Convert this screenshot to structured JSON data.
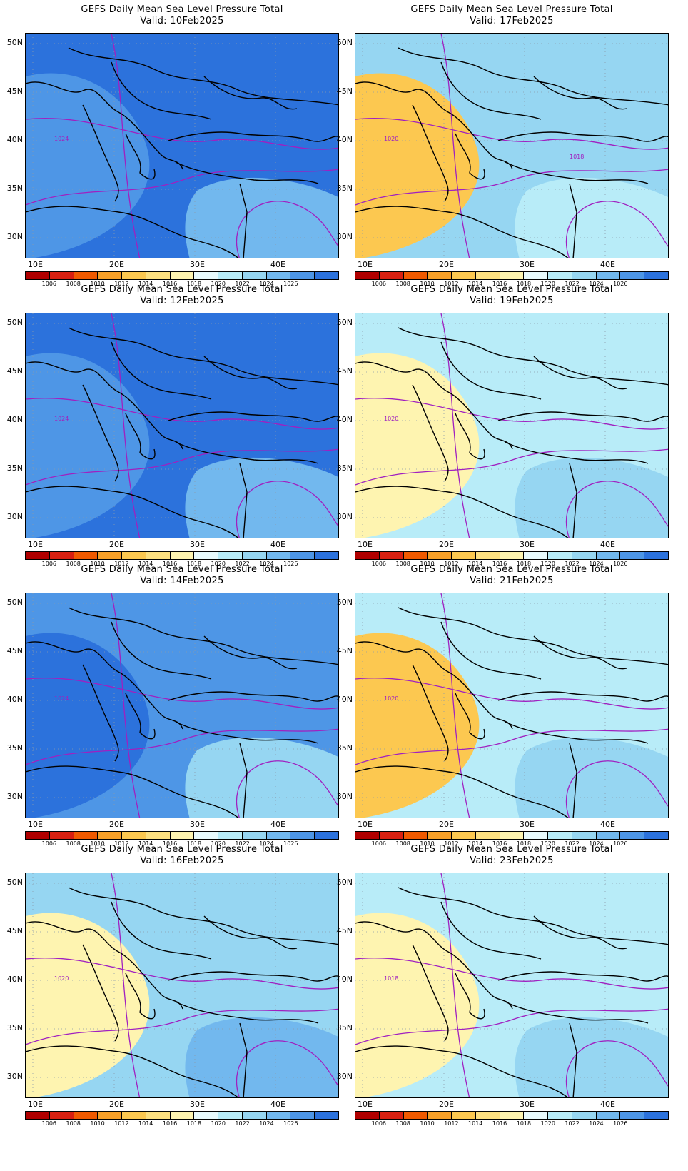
{
  "title_prefix": "GEFS Daily Mean Sea Level Pressure Total",
  "valid_prefix": "Valid:",
  "lat_labels": [
    "50N",
    "45N",
    "40N",
    "35N",
    "30N"
  ],
  "lon_labels": [
    "10E",
    "20E",
    "30E",
    "40E"
  ],
  "colorbar": {
    "colors": [
      "#b00000",
      "#d82010",
      "#f05a00",
      "#f8a028",
      "#fcc850",
      "#fde080",
      "#fef4b0",
      "#e8fafc",
      "#b8ecf8",
      "#96d6f2",
      "#72b8ee",
      "#4e96e6",
      "#2c72dc"
    ],
    "tick_labels": [
      "1006",
      "1008",
      "1010",
      "1012",
      "1014",
      "1016",
      "1018",
      "1020",
      "1022",
      "1024",
      "1026"
    ]
  },
  "contour_color": "#a020c0",
  "panels": [
    {
      "date": "10Feb2025",
      "field_colors": [
        "#2c72dc",
        "#4e96e6",
        "#72b8ee"
      ],
      "contour_labels": [
        "1024"
      ]
    },
    {
      "date": "17Feb2025",
      "field_colors": [
        "#96d6f2",
        "#fcc850",
        "#b8ecf8"
      ],
      "contour_labels": [
        "1020",
        "1018"
      ]
    },
    {
      "date": "12Feb2025",
      "field_colors": [
        "#2c72dc",
        "#4e96e6",
        "#72b8ee"
      ],
      "contour_labels": [
        "1024"
      ]
    },
    {
      "date": "19Feb2025",
      "field_colors": [
        "#b8ecf8",
        "#fef4b0",
        "#96d6f2"
      ],
      "contour_labels": [
        "1020"
      ]
    },
    {
      "date": "14Feb2025",
      "field_colors": [
        "#4e96e6",
        "#2c72dc",
        "#96d6f2"
      ],
      "contour_labels": [
        "1024"
      ]
    },
    {
      "date": "21Feb2025",
      "field_colors": [
        "#b8ecf8",
        "#fcc850",
        "#96d6f2"
      ],
      "contour_labels": [
        "1020"
      ]
    },
    {
      "date": "16Feb2025",
      "field_colors": [
        "#96d6f2",
        "#fef4b0",
        "#72b8ee"
      ],
      "contour_labels": [
        "1020"
      ]
    },
    {
      "date": "23Feb2025",
      "field_colors": [
        "#b8ecf8",
        "#fef4b0",
        "#96d6f2"
      ],
      "contour_labels": [
        "1018"
      ]
    }
  ]
}
